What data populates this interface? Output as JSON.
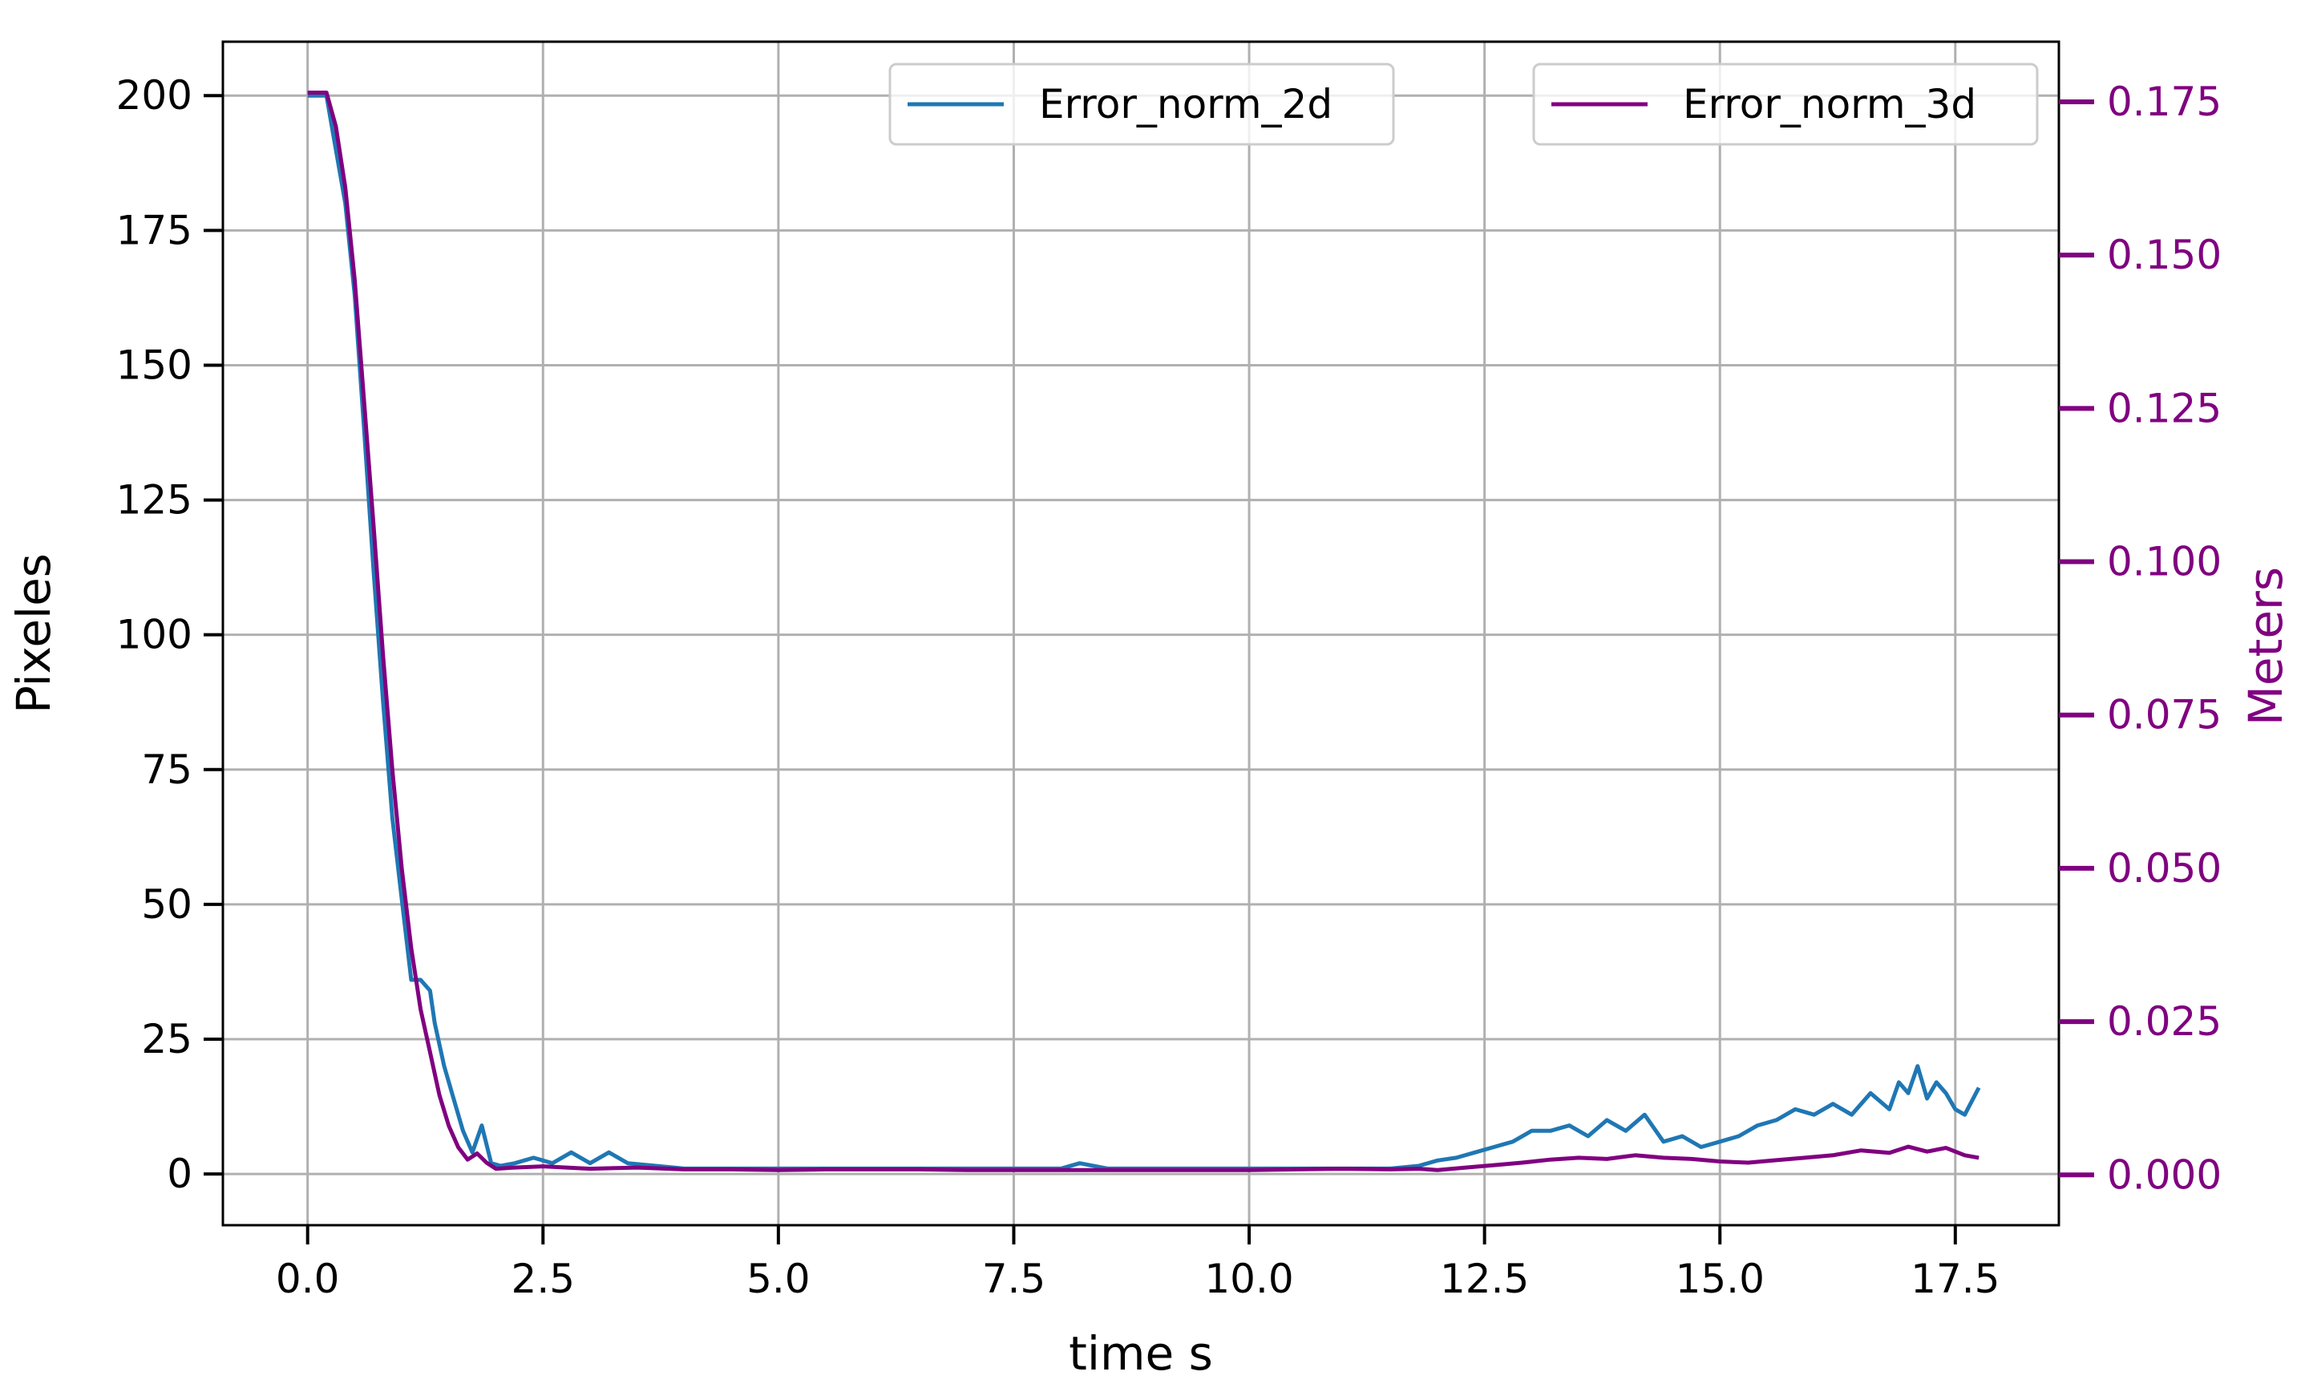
{
  "colors": {
    "series_2d": "#1f77b4",
    "series_3d": "#800080",
    "grid": "#b0b0b0",
    "axis": "#000000"
  },
  "chart_data": {
    "type": "line",
    "title": "",
    "xlabel": "time s",
    "ylabel_left": "Pixeles",
    "ylabel_right": "Meters",
    "xlim": [
      -0.9,
      18.6
    ],
    "ylim_left": [
      -9.5,
      210
    ],
    "ylim_right": [
      -0.0082,
      0.1848
    ],
    "x_ticks": [
      0.0,
      2.5,
      5.0,
      7.5,
      10.0,
      12.5,
      15.0,
      17.5
    ],
    "x_tick_labels": [
      "0.0",
      "2.5",
      "5.0",
      "7.5",
      "10.0",
      "12.5",
      "15.0",
      "17.5"
    ],
    "y_left_ticks": [
      0,
      25,
      50,
      75,
      100,
      125,
      150,
      175,
      200
    ],
    "y_left_tick_labels": [
      "0",
      "25",
      "50",
      "75",
      "100",
      "125",
      "150",
      "175",
      "200"
    ],
    "y_right_ticks": [
      0.0,
      0.025,
      0.05,
      0.075,
      0.1,
      0.125,
      0.15,
      0.175
    ],
    "y_right_tick_labels": [
      "0.000",
      "0.025",
      "0.050",
      "0.075",
      "0.100",
      "0.125",
      "0.150",
      "0.175"
    ],
    "grid": true,
    "legend": [
      {
        "label": "Error_norm_2d",
        "placement": "top-center"
      },
      {
        "label": "Error_norm_3d",
        "placement": "top-right"
      }
    ],
    "series": [
      {
        "name": "Error_norm_2d",
        "axis": "left",
        "x": [
          0.0,
          0.2,
          0.3,
          0.4,
          0.5,
          0.6,
          0.7,
          0.8,
          0.9,
          1.0,
          1.1,
          1.2,
          1.3,
          1.35,
          1.45,
          1.55,
          1.65,
          1.75,
          1.85,
          1.95,
          2.05,
          2.2,
          2.4,
          2.6,
          2.8,
          3.0,
          3.2,
          3.4,
          3.7,
          4.0,
          4.5,
          5.0,
          5.5,
          6.0,
          6.5,
          7.0,
          7.5,
          8.0,
          8.2,
          8.5,
          9.0,
          9.5,
          10.0,
          10.5,
          11.0,
          11.5,
          11.8,
          12.0,
          12.2,
          12.4,
          12.6,
          12.8,
          13.0,
          13.2,
          13.4,
          13.6,
          13.8,
          14.0,
          14.2,
          14.4,
          14.6,
          14.8,
          15.0,
          15.2,
          15.4,
          15.6,
          15.8,
          16.0,
          16.2,
          16.4,
          16.6,
          16.8,
          16.9,
          17.0,
          17.1,
          17.2,
          17.3,
          17.4,
          17.5,
          17.6,
          17.75
        ],
        "y": [
          200,
          200,
          190,
          180,
          163,
          138,
          112,
          88,
          66,
          51,
          36,
          36,
          34,
          28,
          20,
          14,
          8,
          4,
          9,
          2,
          1.5,
          2,
          3,
          2,
          4,
          2,
          4,
          2,
          1.5,
          1,
          1,
          1,
          1,
          1,
          1,
          1,
          1,
          1,
          2,
          1,
          1,
          1,
          1,
          1,
          1,
          1,
          1.5,
          2.5,
          3,
          4,
          5,
          6,
          8,
          8,
          9,
          7,
          10,
          8,
          11,
          6,
          7,
          5,
          6,
          7,
          9,
          10,
          12,
          11,
          13,
          11,
          15,
          12,
          17,
          15,
          20,
          14,
          17,
          15,
          12,
          11,
          16
        ]
      },
      {
        "name": "Error_norm_3d",
        "axis": "right",
        "x": [
          0.0,
          0.2,
          0.3,
          0.4,
          0.5,
          0.6,
          0.7,
          0.8,
          0.9,
          1.0,
          1.1,
          1.2,
          1.3,
          1.4,
          1.5,
          1.6,
          1.7,
          1.8,
          1.9,
          2.0,
          2.2,
          2.5,
          3.0,
          3.5,
          4.0,
          4.5,
          5.0,
          5.5,
          6.0,
          6.5,
          7.0,
          7.5,
          8.0,
          8.5,
          9.0,
          9.5,
          10.0,
          10.5,
          11.0,
          11.5,
          11.8,
          12.0,
          12.3,
          12.6,
          12.9,
          13.2,
          13.5,
          13.8,
          14.1,
          14.4,
          14.7,
          15.0,
          15.3,
          15.6,
          15.9,
          16.2,
          16.5,
          16.8,
          17.0,
          17.2,
          17.4,
          17.6,
          17.75
        ],
        "y": [
          0.1765,
          0.1765,
          0.171,
          0.161,
          0.146,
          0.126,
          0.106,
          0.085,
          0.066,
          0.05,
          0.037,
          0.027,
          0.02,
          0.013,
          0.008,
          0.0045,
          0.0025,
          0.0035,
          0.002,
          0.001,
          0.0012,
          0.0014,
          0.001,
          0.0012,
          0.0009,
          0.0009,
          0.0008,
          0.0009,
          0.0009,
          0.0009,
          0.0008,
          0.0008,
          0.0008,
          0.0008,
          0.0008,
          0.0008,
          0.0008,
          0.0009,
          0.001,
          0.0009,
          0.001,
          0.0008,
          0.0012,
          0.0016,
          0.002,
          0.0025,
          0.0028,
          0.0026,
          0.0032,
          0.0028,
          0.0026,
          0.0022,
          0.002,
          0.0024,
          0.0028,
          0.0032,
          0.004,
          0.0036,
          0.0046,
          0.0038,
          0.0044,
          0.0032,
          0.0028
        ]
      }
    ]
  }
}
